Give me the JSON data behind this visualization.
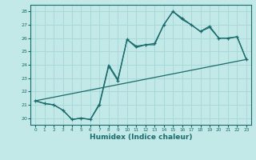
{
  "title": "",
  "xlabel": "Humidex (Indice chaleur)",
  "ylabel": "",
  "background_color": "#c2e8e8",
  "grid_color": "#a8d8d8",
  "line_color": "#1a6b6b",
  "xlim": [
    -0.5,
    23.5
  ],
  "ylim": [
    19.5,
    28.5
  ],
  "yticks": [
    20,
    21,
    22,
    23,
    24,
    25,
    26,
    27,
    28
  ],
  "xticks": [
    0,
    1,
    2,
    3,
    4,
    5,
    6,
    7,
    8,
    9,
    10,
    11,
    12,
    13,
    14,
    15,
    16,
    17,
    18,
    19,
    20,
    21,
    22,
    23
  ],
  "line1_x": [
    0,
    1,
    2,
    3,
    4,
    5,
    6,
    7,
    8,
    9,
    10,
    11,
    12,
    13,
    14,
    15,
    16,
    17,
    18,
    19,
    20,
    21,
    22,
    23
  ],
  "line1_y": [
    21.3,
    21.1,
    21.0,
    20.6,
    19.9,
    20.0,
    19.9,
    21.0,
    23.9,
    22.8,
    25.9,
    25.4,
    25.5,
    25.6,
    27.0,
    28.0,
    27.5,
    27.0,
    26.5,
    26.9,
    26.0,
    26.0,
    26.1,
    24.4
  ],
  "line2_x": [
    0,
    1,
    2,
    3,
    4,
    5,
    6,
    7,
    8,
    9,
    10,
    11,
    12,
    13,
    14,
    15,
    16,
    17,
    18,
    19,
    20,
    21,
    22,
    23
  ],
  "line2_y": [
    21.3,
    21.1,
    21.0,
    20.6,
    19.9,
    20.0,
    19.9,
    21.1,
    24.0,
    22.9,
    25.9,
    25.3,
    25.5,
    25.5,
    27.0,
    28.0,
    27.4,
    27.0,
    26.5,
    26.8,
    26.0,
    26.0,
    26.1,
    24.4
  ],
  "line3_x": [
    0,
    23
  ],
  "line3_y": [
    21.3,
    24.4
  ]
}
